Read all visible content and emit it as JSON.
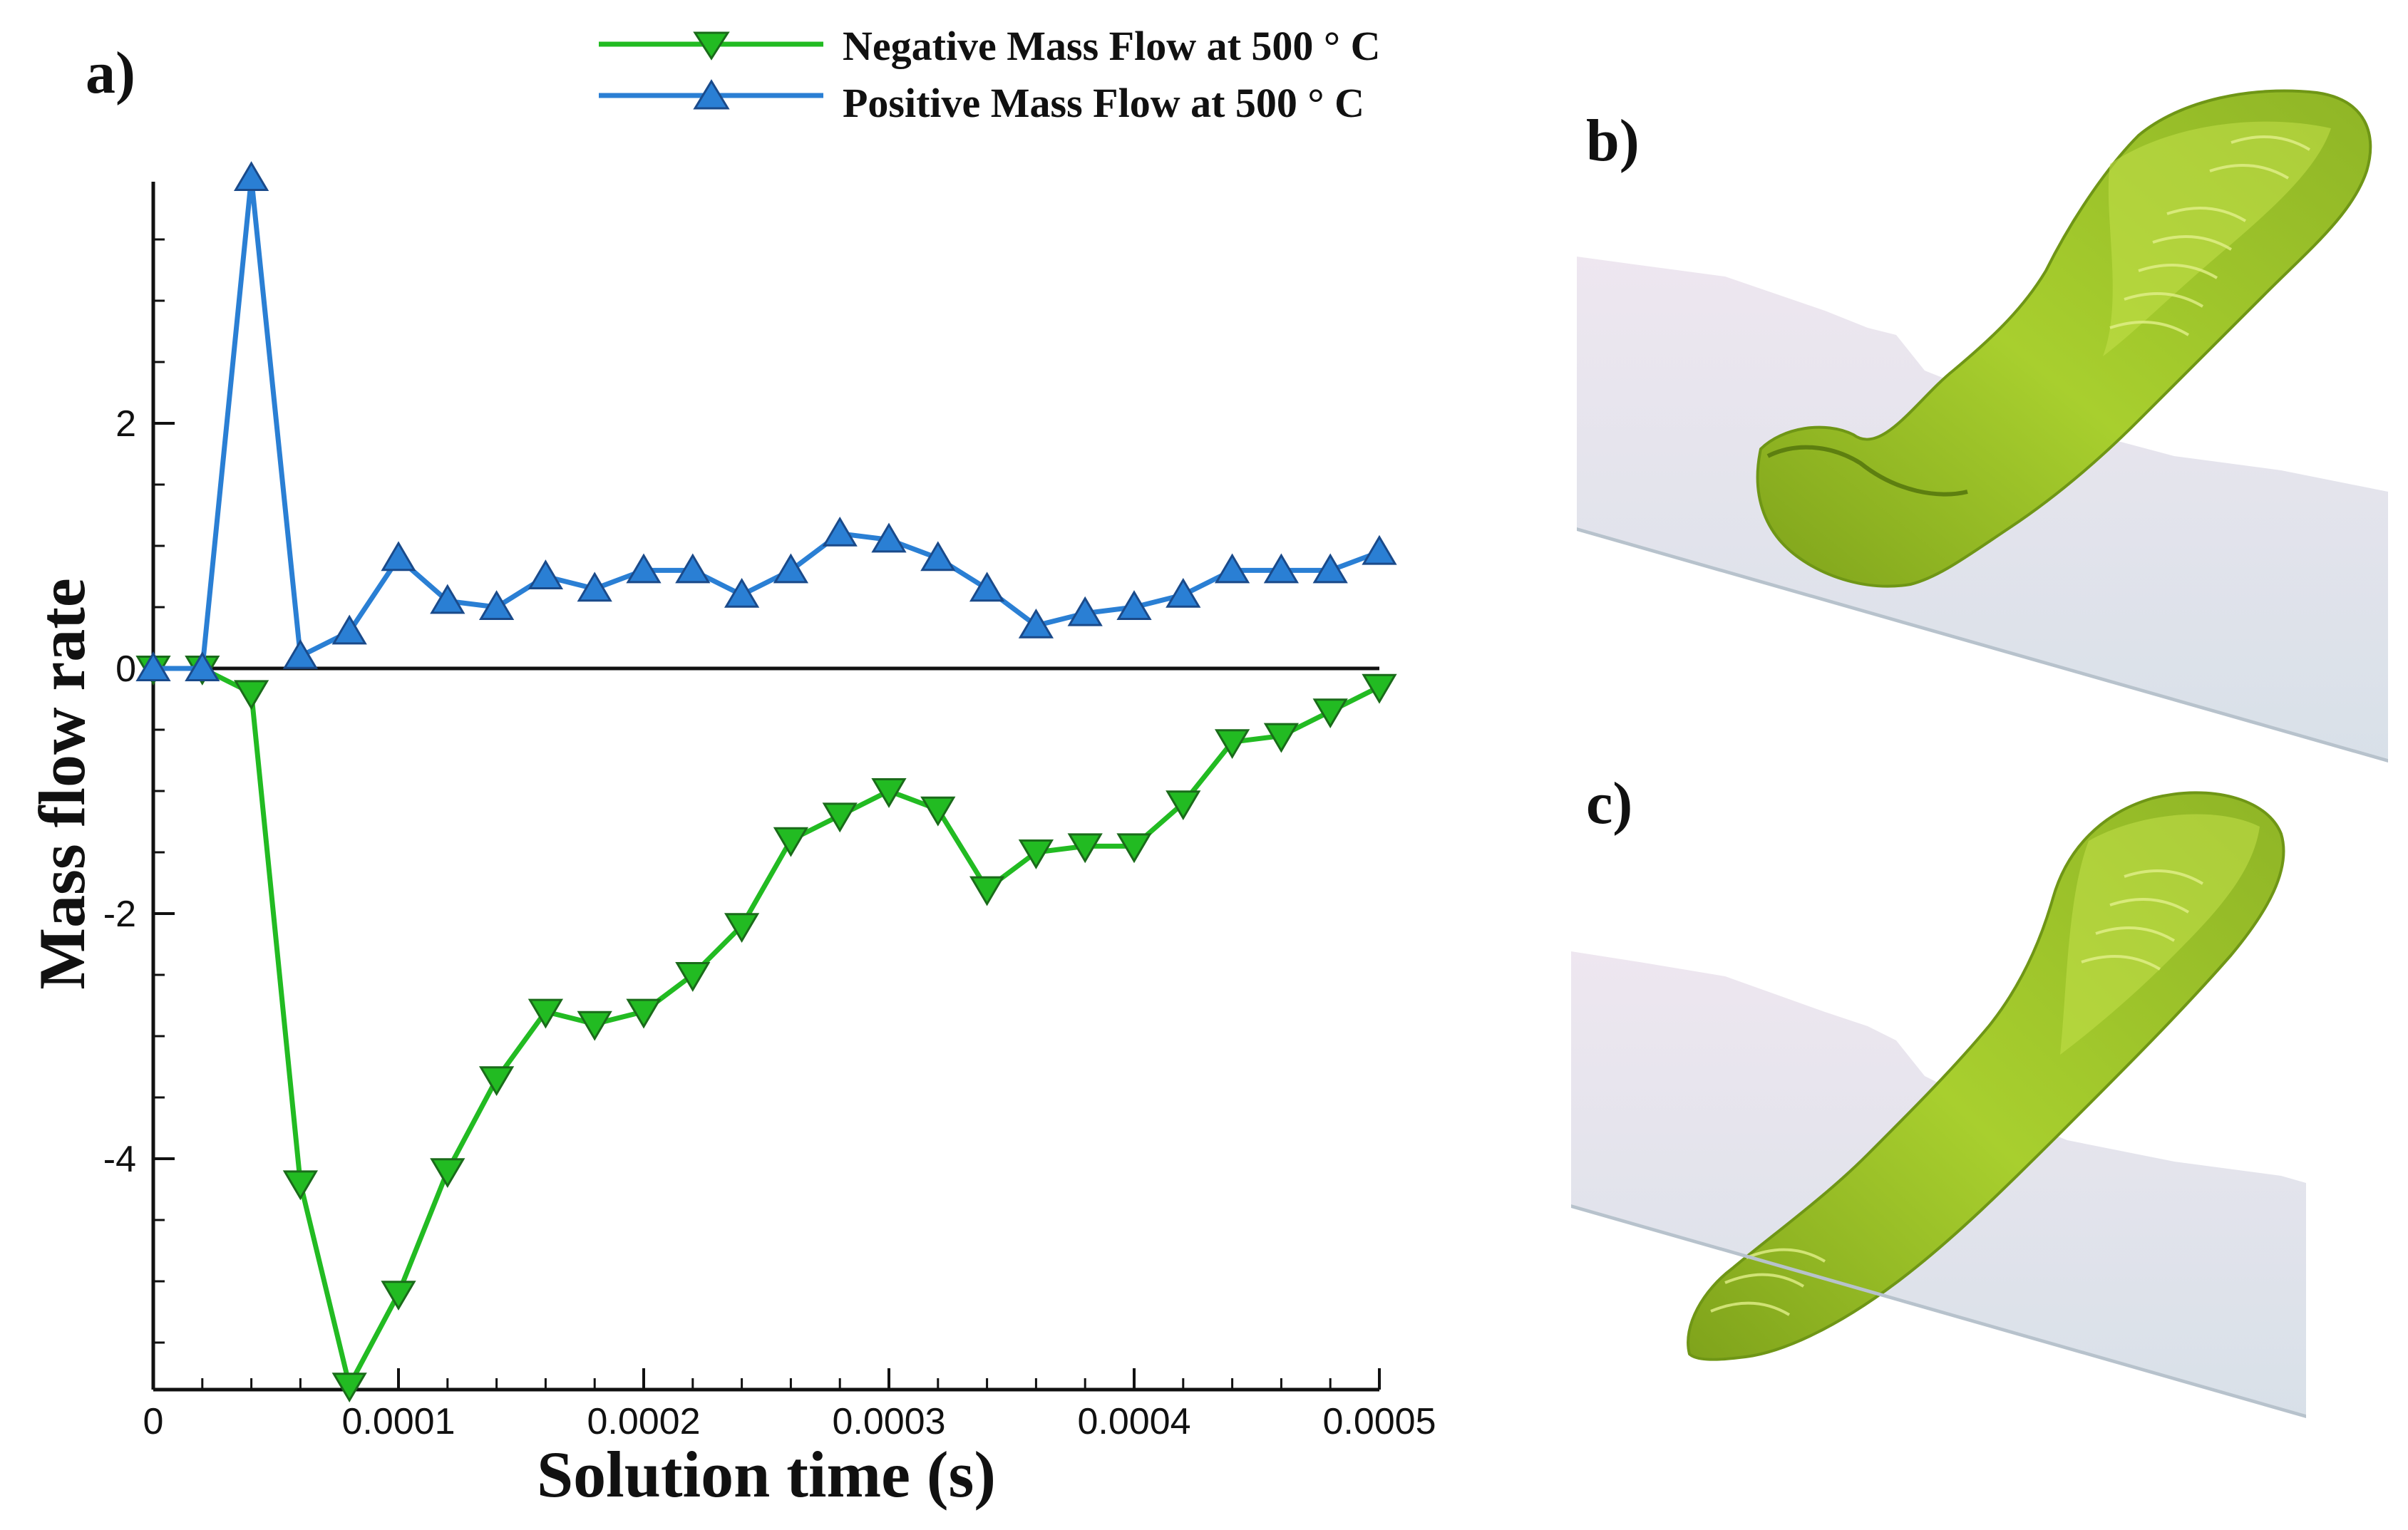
{
  "panels": {
    "a": "a)",
    "b": "b)",
    "c": "c)"
  },
  "chart_data": {
    "type": "line",
    "xlabel": "Solution time (s)",
    "ylabel": "Mass flow rate",
    "xlim": [
      0,
      0.0005
    ],
    "ylim": [
      -5.9,
      4.0
    ],
    "x_ticks": [
      0,
      0.0001,
      0.0002,
      0.0003,
      0.0004,
      0.0005
    ],
    "x_tick_labels": [
      "0",
      "0.0001",
      "0.0002",
      "0.0003",
      "0.0004",
      "0.0005"
    ],
    "y_ticks": [
      2,
      0,
      -2,
      -4
    ],
    "y_tick_labels": [
      "2",
      "0",
      "-2",
      "-4"
    ],
    "legend_position": "top",
    "x": [
      0,
      2e-05,
      4e-05,
      6e-05,
      8e-05,
      0.0001,
      0.00012,
      0.00014,
      0.00016,
      0.00018,
      0.0002,
      0.00022,
      0.00024,
      0.00026,
      0.00028,
      0.0003,
      0.00032,
      0.00034,
      0.00036,
      0.00038,
      0.0004,
      0.00042,
      0.00044,
      0.00046,
      0.00048,
      0.0005
    ],
    "series": [
      {
        "name": "Negative Mass Flow at 500 ° C",
        "color": "#22bb22",
        "marker": "triangle-down",
        "values": [
          0,
          0,
          -0.2,
          -4.2,
          -5.85,
          -5.1,
          -4.1,
          -3.35,
          -2.8,
          -2.9,
          -2.8,
          -2.5,
          -2.1,
          -1.4,
          -1.2,
          -1.0,
          -1.15,
          -1.8,
          -1.5,
          -1.45,
          -1.45,
          -1.1,
          -0.6,
          -0.55,
          -0.35,
          -0.15
        ]
      },
      {
        "name": "Positive Mass Flow at 500 ° C",
        "color": "#2a7fd4",
        "marker": "triangle-up",
        "values": [
          0,
          0,
          4.0,
          0.1,
          0.3,
          0.9,
          0.55,
          0.5,
          0.75,
          0.65,
          0.8,
          0.8,
          0.6,
          0.8,
          1.1,
          1.05,
          0.9,
          0.65,
          0.35,
          0.45,
          0.5,
          0.6,
          0.8,
          0.8,
          0.8,
          0.95
        ]
      }
    ]
  },
  "colors": {
    "surface": "#9cc82a",
    "surface_dark": "#6f9616",
    "surface_light": "#c3e04a",
    "slab": "#dfe6ee"
  }
}
